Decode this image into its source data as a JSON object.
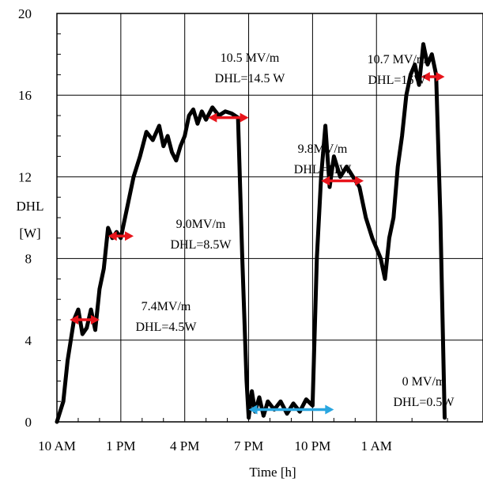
{
  "chart_data": {
    "type": "line",
    "title": "",
    "xlabel": "Time [h]",
    "ylabel_line1": "DHL",
    "ylabel_line2": "[W]",
    "x_unit": "hours after 10 AM",
    "xlim": [
      0,
      20
    ],
    "ylim": [
      0,
      20
    ],
    "grid": true,
    "x_ticks": [
      {
        "value": 0,
        "label": "10 AM"
      },
      {
        "value": 3,
        "label": "1 PM"
      },
      {
        "value": 6,
        "label": "4 PM"
      },
      {
        "value": 9,
        "label": "7 PM"
      },
      {
        "value": 12,
        "label": "10 PM"
      },
      {
        "value": 15,
        "label": "1 AM"
      }
    ],
    "y_ticks": [
      0,
      4,
      8,
      12,
      16,
      20
    ],
    "series": [
      {
        "color": "#000000",
        "x": [
          0.0,
          0.3,
          0.5,
          0.8,
          1.0,
          1.2,
          1.4,
          1.6,
          1.8,
          2.0,
          2.2,
          2.4,
          2.6,
          2.8,
          3.0,
          3.3,
          3.6,
          3.9,
          4.2,
          4.5,
          4.8,
          5.0,
          5.2,
          5.4,
          5.6,
          5.8,
          6.0,
          6.2,
          6.4,
          6.6,
          6.8,
          7.0,
          7.3,
          7.6,
          7.9,
          8.2,
          8.5,
          8.7,
          8.9,
          9.0,
          9.15,
          9.3,
          9.5,
          9.7,
          9.9,
          10.2,
          10.5,
          10.8,
          11.1,
          11.4,
          11.7,
          12.0,
          12.2,
          12.4,
          12.6,
          12.8,
          13.0,
          13.3,
          13.6,
          13.9,
          14.2,
          14.5,
          14.8,
          15.0,
          15.2,
          15.4,
          15.6,
          15.8,
          16.0,
          16.2,
          16.4,
          16.6,
          16.8,
          17.0,
          17.2,
          17.4,
          17.6,
          17.8,
          18.0,
          18.2
        ],
        "y": [
          0.0,
          1.0,
          3.0,
          5.0,
          5.5,
          4.3,
          4.6,
          5.5,
          4.5,
          6.5,
          7.5,
          9.5,
          9.0,
          9.3,
          9.0,
          10.5,
          12.0,
          13.0,
          14.2,
          13.8,
          14.5,
          13.5,
          14.0,
          13.2,
          12.8,
          13.5,
          14.0,
          15.0,
          15.3,
          14.6,
          15.2,
          14.8,
          15.4,
          15.0,
          15.2,
          15.1,
          14.9,
          8.0,
          2.0,
          0.2,
          1.5,
          0.5,
          1.2,
          0.3,
          1.0,
          0.6,
          1.0,
          0.4,
          0.9,
          0.5,
          1.1,
          0.8,
          8.0,
          12.0,
          14.5,
          11.5,
          13.0,
          12.0,
          12.5,
          12.0,
          11.5,
          10.0,
          9.0,
          8.5,
          8.0,
          7.0,
          9.0,
          10.0,
          12.5,
          14.0,
          16.0,
          17.0,
          17.5,
          16.5,
          18.5,
          17.5,
          18.0,
          17.0,
          10.0,
          0.2
        ]
      }
    ],
    "annotations": [
      {
        "line1": "7.4MV/m",
        "line2": "DHL=4.5W",
        "arrow_x": [
          0.6,
          2.0
        ],
        "arrow_y": 5.0,
        "arrow_color": "#e8141b"
      },
      {
        "line1": "9.0MV/m",
        "line2": "DHL=8.5W",
        "arrow_x": [
          2.4,
          3.6
        ],
        "arrow_y": 9.1,
        "arrow_color": "#e8141b"
      },
      {
        "line1": "10.5 MV/m",
        "line2": "DHL=14.5 W",
        "arrow_x": [
          7.1,
          9.0
        ],
        "arrow_y": 14.9,
        "arrow_color": "#e8141b"
      },
      {
        "line1": "9.8MV/m",
        "line2": "DHL=11W",
        "arrow_x": [
          12.4,
          14.4
        ],
        "arrow_y": 11.8,
        "arrow_color": "#e8141b"
      },
      {
        "line1": "10.7 MV/m",
        "line2": "DHL=16W",
        "arrow_x": [
          17.1,
          18.2
        ],
        "arrow_y": 16.9,
        "arrow_color": "#e8141b"
      },
      {
        "line1": "0 MV/m",
        "line2": "DHL=0.5W",
        "arrow_x": [
          9.0,
          13.0
        ],
        "arrow_y": 0.6,
        "arrow_color": "#29a6e0"
      }
    ]
  }
}
